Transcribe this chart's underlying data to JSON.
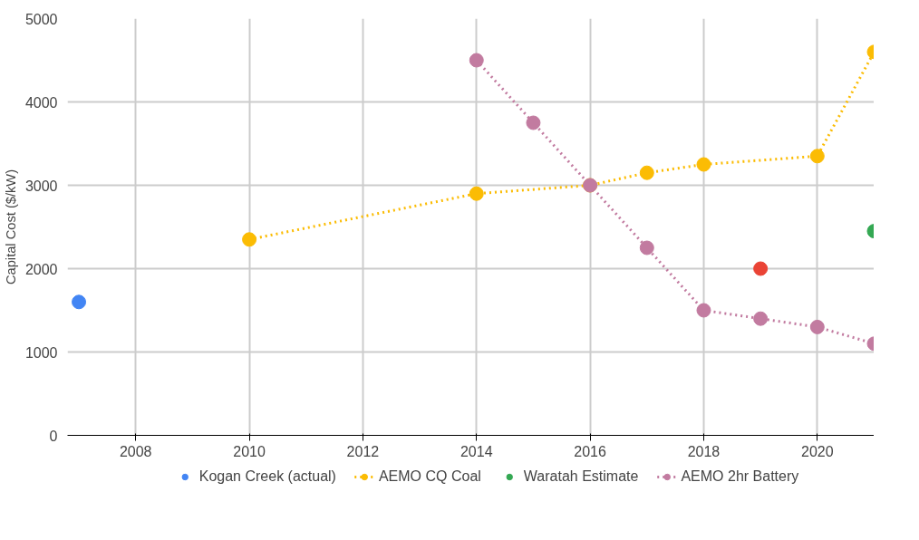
{
  "chart_data": {
    "type": "line",
    "ylabel": "Capital Cost ($/kW)",
    "xlim": [
      2006.8,
      2021
    ],
    "xticks": [
      2008,
      2010,
      2012,
      2014,
      2016,
      2018,
      2020
    ],
    "ylim": [
      0,
      5000
    ],
    "yticks": [
      0,
      1000,
      2000,
      3000,
      4000,
      5000
    ],
    "grid": true,
    "legend": "bottom",
    "marker": "circle",
    "line_style": "dotted",
    "series": [
      {
        "name": "Kogan Creek (actual)",
        "type": "scatter",
        "color": "#4285f4",
        "x": [
          2007
        ],
        "values": [
          1600
        ]
      },
      {
        "type": "scatter",
        "color": "#ea4335",
        "x": [
          2019
        ],
        "values": [
          2000
        ]
      },
      {
        "name": "AEMO CQ Coal",
        "type": "line",
        "color": "#fbbc04",
        "x": [
          2010,
          2014,
          2016,
          2017,
          2018,
          2020,
          2021
        ],
        "values": [
          2350,
          2900,
          3000,
          3150,
          3250,
          3350,
          4600
        ]
      },
      {
        "name": "Waratah Estimate",
        "type": "scatter",
        "color": "#34a853",
        "x": [
          2021
        ],
        "values": [
          2450
        ]
      },
      {
        "name": "AEMO 2hr Battery",
        "type": "line",
        "color": "#c27ba0",
        "x": [
          2014,
          2015,
          2016,
          2017,
          2018,
          2019,
          2020,
          2021
        ],
        "values": [
          4500,
          3750,
          3000,
          2250,
          1500,
          1400,
          1300,
          1100
        ]
      }
    ]
  }
}
